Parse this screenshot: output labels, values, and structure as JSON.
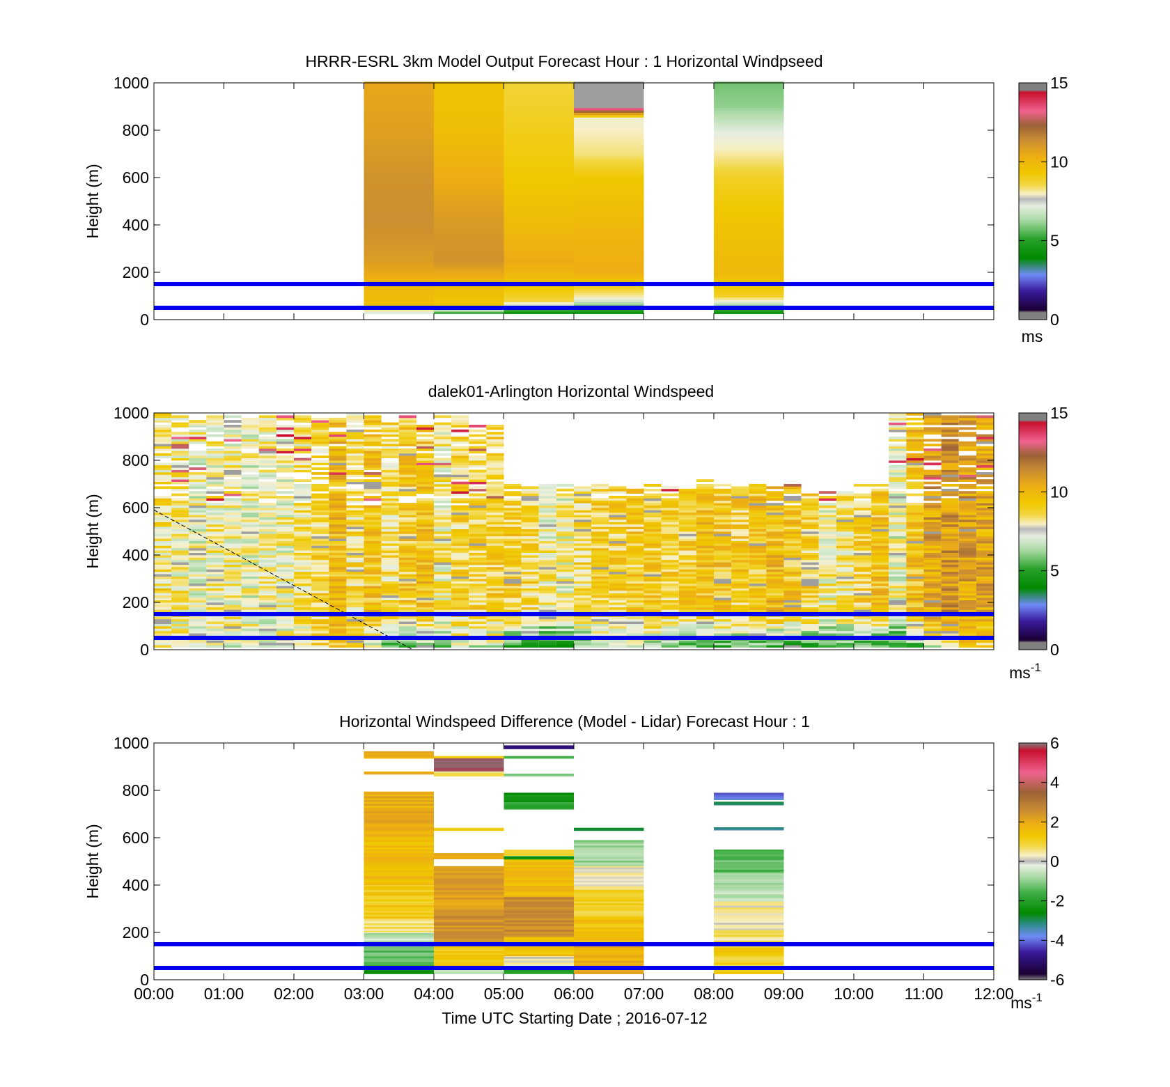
{
  "figure": {
    "xlabel": "Time UTC  Starting Date ; 2016-07-12"
  },
  "x_ticks": [
    "00:00",
    "01:00",
    "02:00",
    "03:00",
    "04:00",
    "05:00",
    "06:00",
    "07:00",
    "08:00",
    "09:00",
    "10:00",
    "11:00",
    "12:00"
  ],
  "y_ticks": [
    "0",
    "200",
    "400",
    "600",
    "800",
    "1000"
  ],
  "chart_data": [
    {
      "type": "heatmap",
      "title": "HRRR-ESRL 3km Model Output   Forecast Hour : 1 Horizontal Windpseed",
      "ylabel": "Height (m)",
      "xlim_hours": [
        0,
        12
      ],
      "ylim": [
        0,
        1000
      ],
      "colorbar": {
        "ticks": [
          "0",
          "5",
          "10",
          "15"
        ],
        "range": [
          0,
          15
        ],
        "unit": "ms",
        "unit_sup": ""
      },
      "reference_lines_m": [
        50,
        150
      ],
      "reference_line_color": "#0000ee",
      "columns": [
        {
          "start_hour": 3,
          "end_hour": 4,
          "profile": [
            [
              1000,
              10.4
            ],
            [
              800,
              10.6
            ],
            [
              600,
              11.0
            ],
            [
              400,
              11.1
            ],
            [
              250,
              10.7
            ],
            [
              150,
              10.0
            ],
            [
              60,
              9.5
            ],
            [
              30,
              7.2
            ]
          ]
        },
        {
          "start_hour": 4,
          "end_hour": 5,
          "profile": [
            [
              1000,
              9.4
            ],
            [
              800,
              9.6
            ],
            [
              600,
              10.2
            ],
            [
              400,
              10.8
            ],
            [
              250,
              11.0
            ],
            [
              150,
              9.8
            ],
            [
              60,
              9.2
            ],
            [
              30,
              5.5
            ]
          ]
        },
        {
          "start_hour": 5,
          "end_hour": 6,
          "profile": [
            [
              1000,
              8.6
            ],
            [
              800,
              8.9
            ],
            [
              600,
              9.2
            ],
            [
              400,
              9.7
            ],
            [
              250,
              10.3
            ],
            [
              150,
              9.5
            ],
            [
              80,
              8.5
            ],
            [
              30,
              4.5
            ]
          ]
        },
        {
          "start_hour": 6,
          "end_hour": 7,
          "profile": [
            [
              1000,
              15.0
            ],
            [
              900,
              15.0
            ],
            [
              850,
              7.6
            ],
            [
              700,
              8.2
            ],
            [
              600,
              9.2
            ],
            [
              400,
              9.8
            ],
            [
              200,
              10.2
            ],
            [
              100,
              8.0
            ],
            [
              30,
              4.5
            ]
          ]
        },
        {
          "start_hour": 8,
          "end_hour": 9,
          "profile": [
            [
              1000,
              5.9
            ],
            [
              900,
              6.2
            ],
            [
              800,
              7.2
            ],
            [
              700,
              8.0
            ],
            [
              600,
              8.8
            ],
            [
              400,
              9.4
            ],
            [
              200,
              9.8
            ],
            [
              100,
              8.8
            ],
            [
              30,
              4.5
            ]
          ]
        }
      ]
    },
    {
      "type": "heatmap",
      "title": "dalek01-Arlington  Horizontal Windspeed",
      "ylabel": "Height (m)",
      "xlim_hours": [
        0,
        12
      ],
      "ylim": [
        0,
        1000
      ],
      "colorbar": {
        "ticks": [
          "0",
          "5",
          "10",
          "15"
        ],
        "range": [
          0,
          15
        ],
        "unit": "ms",
        "unit_sup": "-1"
      },
      "reference_lines_m": [
        50,
        150
      ],
      "reference_line_color": "#0000ee",
      "diagonal_line": {
        "from_hour": 0,
        "from_m": 590,
        "to_hour": 3.7,
        "to_m": 0
      },
      "column_width_hours": 0.25,
      "column_top_m": [
        1000,
        990,
        980,
        990,
        990,
        990,
        990,
        990,
        990,
        990,
        990,
        1000,
        990,
        960,
        990,
        990,
        990,
        990,
        950,
        960,
        700,
        690,
        700,
        700,
        690,
        700,
        690,
        680,
        700,
        690,
        680,
        720,
        700,
        690,
        700,
        690,
        700,
        660,
        670,
        670,
        700,
        700,
        1000,
        1000,
        1000,
        990,
        990,
        990
      ],
      "column_base_speed": [
        8.3,
        8.0,
        7.6,
        7.8,
        7.8,
        7.5,
        7.6,
        7.7,
        8.2,
        8.6,
        9.6,
        8.4,
        9.3,
        8.5,
        9.1,
        9.3,
        8.0,
        8.7,
        8.8,
        8.8,
        9.0,
        8.5,
        7.8,
        7.7,
        8.5,
        8.8,
        8.8,
        9.0,
        9.1,
        8.8,
        8.9,
        9.5,
        9.3,
        9.0,
        9.2,
        9.6,
        9.2,
        8.8,
        7.8,
        8.3,
        8.8,
        9.3,
        7.5,
        9.5,
        10.5,
        10.8,
        10.5,
        10.3
      ],
      "near_surface_speed": [
        7.6,
        7.5,
        7.3,
        7.4,
        7.5,
        7.4,
        7.5,
        7.6,
        8.0,
        8.5,
        9.5,
        8.5,
        7.0,
        5.6,
        6.0,
        6.3,
        6.5,
        7.0,
        7.0,
        6.8,
        5.0,
        4.5,
        4.5,
        5.0,
        5.8,
        6.2,
        6.4,
        6.6,
        6.5,
        6.0,
        5.8,
        5.5,
        5.3,
        5.6,
        5.5,
        5.2,
        5.3,
        5.4,
        5.5,
        5.6,
        5.6,
        5.0,
        5.1,
        5.3,
        7.2,
        7.6,
        8.8,
        9.0
      ]
    },
    {
      "type": "heatmap",
      "title": "Horizontal Windspeed Difference (Model - Lidar) Forecast Hour : 1",
      "ylabel": "Height (m)",
      "xlabel": "Time UTC  Starting Date ; 2016-07-12",
      "xlim_hours": [
        0,
        12
      ],
      "ylim": [
        0,
        1000
      ],
      "colorbar": {
        "ticks": [
          "-6",
          "-4",
          "-2",
          "0",
          "2",
          "4",
          "6"
        ],
        "range": [
          -6,
          6
        ],
        "unit": "ms",
        "unit_sup": "-1"
      },
      "reference_lines_m": [
        50,
        150
      ],
      "reference_line_color": "#0000ee",
      "bands": [
        {
          "start_hour": 3,
          "end_hour": 4,
          "bottom_m": 935,
          "top_m": 965,
          "value": 1.8
        },
        {
          "start_hour": 3,
          "end_hour": 4,
          "bottom_m": 868,
          "top_m": 880,
          "value": 2.0
        },
        {
          "start_hour": 3,
          "end_hour": 4,
          "bottom_m": 600,
          "top_m": 795,
          "value": 1.9
        },
        {
          "start_hour": 3,
          "end_hour": 4,
          "bottom_m": 400,
          "top_m": 600,
          "value": 1.6
        },
        {
          "start_hour": 3,
          "end_hour": 4,
          "bottom_m": 260,
          "top_m": 400,
          "value": 1.2
        },
        {
          "start_hour": 3,
          "end_hour": 4,
          "bottom_m": 200,
          "top_m": 260,
          "value": 0.6
        },
        {
          "start_hour": 3,
          "end_hour": 4,
          "bottom_m": 150,
          "top_m": 200,
          "value": -0.6
        },
        {
          "start_hour": 3,
          "end_hour": 4,
          "bottom_m": 60,
          "top_m": 150,
          "value": -1.3
        },
        {
          "start_hour": 3,
          "end_hour": 4,
          "bottom_m": 25,
          "top_m": 60,
          "value": -2.3
        },
        {
          "start_hour": 4,
          "end_hour": 5,
          "bottom_m": 935,
          "top_m": 945,
          "value": 0.9
        },
        {
          "start_hour": 4,
          "end_hour": 5,
          "bottom_m": 880,
          "top_m": 935,
          "value": 6.0
        },
        {
          "start_hour": 4,
          "end_hour": 5,
          "bottom_m": 860,
          "top_m": 880,
          "value": 0.6
        },
        {
          "start_hour": 4,
          "end_hour": 5,
          "bottom_m": 630,
          "top_m": 642,
          "value": 1.0
        },
        {
          "start_hour": 4,
          "end_hour": 5,
          "bottom_m": 510,
          "top_m": 535,
          "value": 2.0
        },
        {
          "start_hour": 4,
          "end_hour": 5,
          "bottom_m": 300,
          "top_m": 480,
          "value": 2.2
        },
        {
          "start_hour": 4,
          "end_hour": 5,
          "bottom_m": 150,
          "top_m": 300,
          "value": 2.5
        },
        {
          "start_hour": 4,
          "end_hour": 5,
          "bottom_m": 50,
          "top_m": 150,
          "value": 1.2
        },
        {
          "start_hour": 4,
          "end_hour": 5,
          "bottom_m": 25,
          "top_m": 50,
          "value": -0.6
        },
        {
          "start_hour": 5,
          "end_hour": 6,
          "bottom_m": 975,
          "top_m": 990,
          "value": -5.2
        },
        {
          "start_hour": 5,
          "end_hour": 6,
          "bottom_m": 935,
          "top_m": 945,
          "value": -1.6
        },
        {
          "start_hour": 5,
          "end_hour": 6,
          "bottom_m": 860,
          "top_m": 870,
          "value": -1.0
        },
        {
          "start_hour": 5,
          "end_hour": 6,
          "bottom_m": 750,
          "top_m": 790,
          "value": -2.4
        },
        {
          "start_hour": 5,
          "end_hour": 6,
          "bottom_m": 720,
          "top_m": 750,
          "value": -1.8
        },
        {
          "start_hour": 5,
          "end_hour": 6,
          "bottom_m": 525,
          "top_m": 550,
          "value": 0.8
        },
        {
          "start_hour": 5,
          "end_hour": 6,
          "bottom_m": 508,
          "top_m": 522,
          "value": -2.6
        },
        {
          "start_hour": 5,
          "end_hour": 6,
          "bottom_m": 350,
          "top_m": 508,
          "value": 1.6
        },
        {
          "start_hour": 5,
          "end_hour": 6,
          "bottom_m": 180,
          "top_m": 350,
          "value": 2.6
        },
        {
          "start_hour": 5,
          "end_hour": 6,
          "bottom_m": 100,
          "top_m": 180,
          "value": 1.4
        },
        {
          "start_hour": 5,
          "end_hour": 6,
          "bottom_m": 50,
          "top_m": 100,
          "value": 0.2
        },
        {
          "start_hour": 5,
          "end_hour": 6,
          "bottom_m": 25,
          "top_m": 50,
          "value": -2.2
        },
        {
          "start_hour": 6,
          "end_hour": 7,
          "bottom_m": 630,
          "top_m": 642,
          "value": -3.0
        },
        {
          "start_hour": 6,
          "end_hour": 7,
          "bottom_m": 480,
          "top_m": 590,
          "value": -0.9
        },
        {
          "start_hour": 6,
          "end_hour": 7,
          "bottom_m": 380,
          "top_m": 480,
          "value": 0.3
        },
        {
          "start_hour": 6,
          "end_hour": 7,
          "bottom_m": 260,
          "top_m": 380,
          "value": 1.0
        },
        {
          "start_hour": 6,
          "end_hour": 7,
          "bottom_m": 150,
          "top_m": 260,
          "value": 1.4
        },
        {
          "start_hour": 6,
          "end_hour": 7,
          "bottom_m": 25,
          "top_m": 150,
          "value": 1.9
        },
        {
          "start_hour": 8,
          "end_hour": 9,
          "bottom_m": 775,
          "top_m": 790,
          "value": -4.2
        },
        {
          "start_hour": 8,
          "end_hour": 9,
          "bottom_m": 760,
          "top_m": 775,
          "value": -3.6
        },
        {
          "start_hour": 8,
          "end_hour": 9,
          "bottom_m": 738,
          "top_m": 752,
          "value": -2.8
        },
        {
          "start_hour": 8,
          "end_hour": 9,
          "bottom_m": 632,
          "top_m": 644,
          "value": -3.0
        },
        {
          "start_hour": 8,
          "end_hour": 9,
          "bottom_m": 450,
          "top_m": 550,
          "value": -1.4
        },
        {
          "start_hour": 8,
          "end_hour": 9,
          "bottom_m": 330,
          "top_m": 450,
          "value": -0.7
        },
        {
          "start_hour": 8,
          "end_hour": 9,
          "bottom_m": 210,
          "top_m": 330,
          "value": 0.4
        },
        {
          "start_hour": 8,
          "end_hour": 9,
          "bottom_m": 150,
          "top_m": 210,
          "value": 0.6
        },
        {
          "start_hour": 8,
          "end_hour": 9,
          "bottom_m": 25,
          "top_m": 150,
          "value": 1.1
        }
      ]
    }
  ]
}
